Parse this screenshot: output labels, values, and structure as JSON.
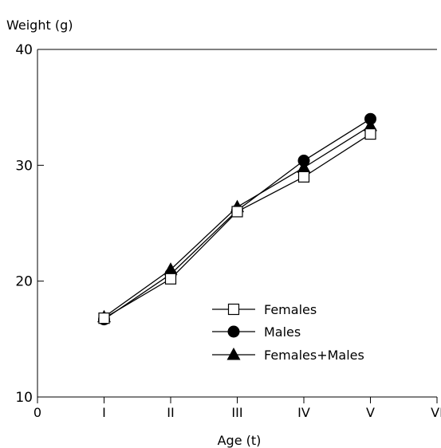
{
  "chart_data": {
    "type": "line",
    "title": "",
    "ylabel": "Weight (g)",
    "xlabel": "Age (t)",
    "ylim": [
      10,
      40
    ],
    "yticks": [
      10,
      20,
      30,
      40
    ],
    "xlim": [
      0,
      6
    ],
    "xtick_labels": [
      "0",
      "I",
      "II",
      "III",
      "IV",
      "V",
      "VI"
    ],
    "x": [
      1,
      2,
      3,
      4,
      5
    ],
    "grid": false,
    "legend_position": "lower-right",
    "series": [
      {
        "name": "Females",
        "marker": "open-square",
        "values": [
          16.8,
          20.2,
          26.0,
          29.0,
          32.7
        ]
      },
      {
        "name": "Males",
        "marker": "filled-circle",
        "values": [
          16.7,
          20.6,
          26.1,
          30.4,
          34.0
        ]
      },
      {
        "name": "Females+Males",
        "marker": "filled-triangle",
        "values": [
          16.9,
          21.0,
          26.4,
          29.8,
          33.4
        ]
      }
    ],
    "colors": {
      "line": "#000000",
      "marker_fill": "#000000",
      "open_fill": "#ffffff"
    }
  }
}
